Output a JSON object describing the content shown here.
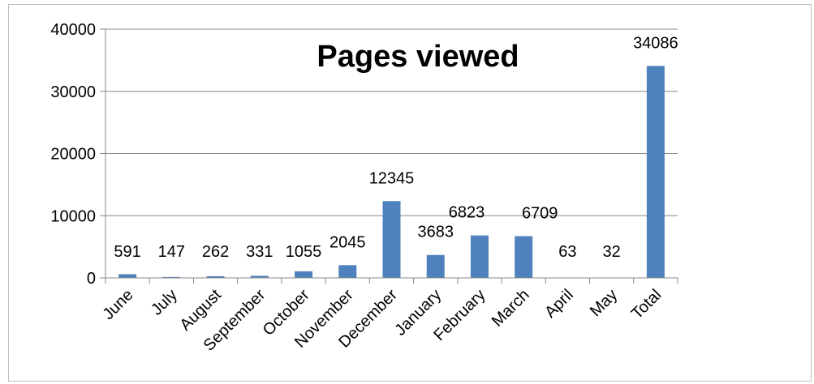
{
  "chart_data": {
    "type": "bar",
    "title": "Pages viewed",
    "categories": [
      "June",
      "July",
      "August",
      "September",
      "October",
      "November",
      "December",
      "January",
      "February",
      "March",
      "April",
      "May",
      "Total"
    ],
    "values": [
      591,
      147,
      262,
      331,
      1055,
      2045,
      12345,
      3683,
      6823,
      6709,
      63,
      32,
      34086
    ],
    "data_labels": [
      "591",
      "147",
      "262",
      "331",
      "1055",
      "2045",
      "12345",
      "3683",
      "6823",
      "6709",
      "63",
      "32",
      "34086"
    ],
    "yticks": [
      "0",
      "10000",
      "20000",
      "30000",
      "40000"
    ],
    "ylim": [
      0,
      40000
    ],
    "grid": true,
    "legend": "none",
    "colors": {
      "bar": "#4f81bd",
      "grid": "#888888",
      "axis": "#888888"
    }
  }
}
